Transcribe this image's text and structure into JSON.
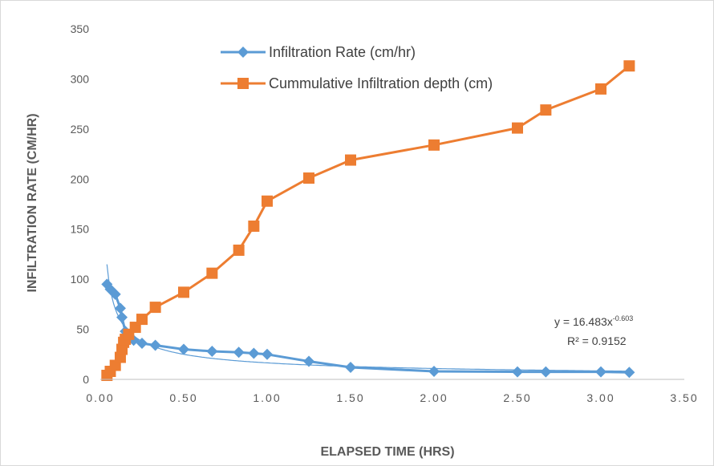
{
  "chart_data": {
    "type": "scatter",
    "xlabel": "ELAPSED TIME (HRS)",
    "ylabel": "INFILTRATION RATE (CM/HR)",
    "xlim": [
      0,
      3.5
    ],
    "ylim": [
      0,
      350
    ],
    "x_ticks": [
      "0.00",
      "0.50",
      "1.00",
      "1.50",
      "2.00",
      "2.50",
      "3.00",
      "3.50"
    ],
    "y_ticks": [
      "0",
      "50",
      "100",
      "150",
      "200",
      "250",
      "300",
      "350"
    ],
    "grid": false,
    "legend_position": "top-center",
    "series": [
      {
        "name": "Infiltration Rate (cm/hr)",
        "color": "#5b9bd5",
        "marker": "diamond",
        "x": [
          0.04,
          0.06,
          0.09,
          0.12,
          0.13,
          0.15,
          0.2,
          0.25,
          0.33,
          0.5,
          0.67,
          0.83,
          0.92,
          1.0,
          1.25,
          1.5,
          2.0,
          2.5,
          2.67,
          3.0,
          3.17
        ],
        "y": [
          95,
          90,
          85,
          71,
          62,
          48,
          39,
          36,
          34,
          30,
          28,
          27,
          26,
          25,
          18,
          12,
          8,
          7.5,
          7.5,
          7.5,
          7
        ]
      },
      {
        "name": "Cummulative Infiltration depth (cm)",
        "color": "#ed7d31",
        "marker": "square",
        "x": [
          0.04,
          0.06,
          0.09,
          0.12,
          0.13,
          0.14,
          0.15,
          0.17,
          0.21,
          0.25,
          0.33,
          0.5,
          0.67,
          0.83,
          0.92,
          1.0,
          1.25,
          1.5,
          2.0,
          2.5,
          2.67,
          3.0,
          3.17
        ],
        "y": [
          4,
          8,
          14,
          22,
          30,
          37,
          40,
          45,
          52,
          60,
          72,
          87,
          106,
          129,
          153,
          178,
          201,
          219,
          234,
          251,
          269,
          290,
          313
        ]
      }
    ],
    "trendline": {
      "series": "Infiltration Rate (cm/hr)",
      "type": "power",
      "coefficient": 16.483,
      "exponent": -0.603,
      "equation_text": "y = 16.483x",
      "exponent_text": "-0.603",
      "r2_text": "R² = 0.9152",
      "color": "#5b9bd5"
    }
  }
}
